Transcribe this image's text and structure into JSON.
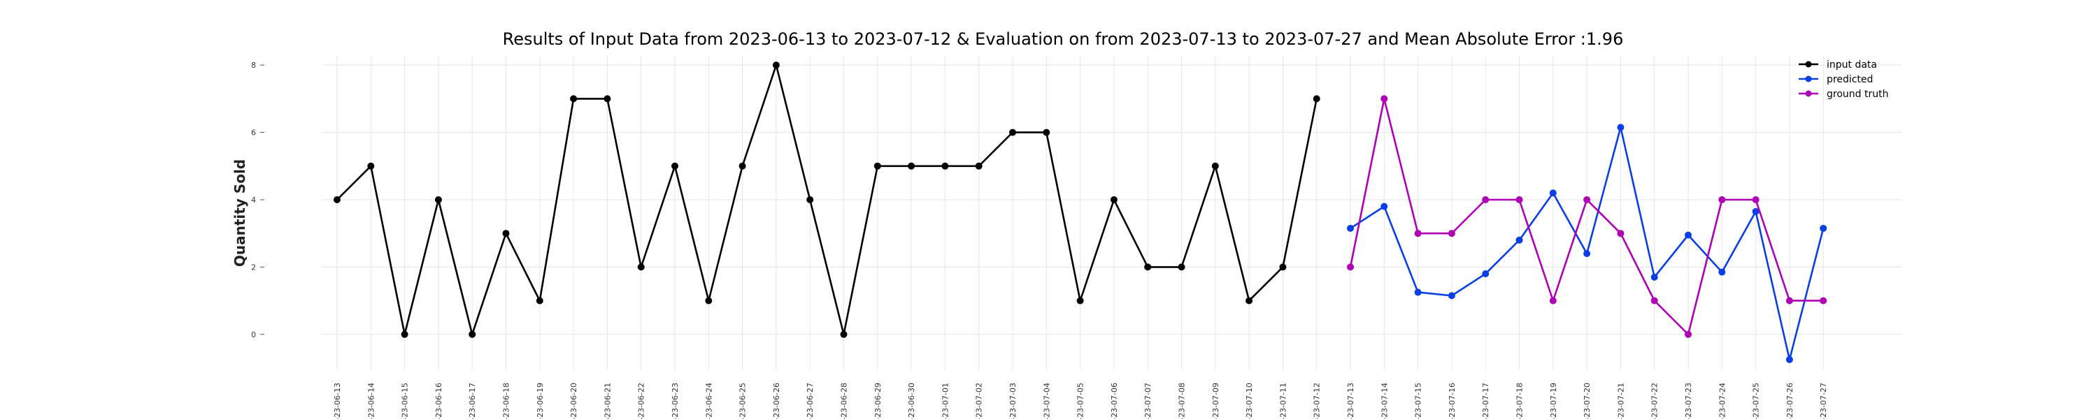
{
  "chart_data": {
    "type": "line",
    "title": "Results of Input Data from 2023-06-13 to 2023-07-12 & Evaluation on from 2023-07-13 to 2023-07-27 and Mean Absolute Error  :1.96",
    "xlabel": "",
    "ylabel": "Quantity Sold",
    "ylim": [
      -1.0,
      8.0
    ],
    "yticks": [
      0,
      2,
      4,
      6,
      8
    ],
    "grid": true,
    "legend_position": "top-right",
    "x_tick_labels": [
      "-23-06-13",
      "-23-06-14",
      "-23-06-15",
      "-23-06-16",
      "-23-06-17",
      "-23-06-18",
      "-23-06-19",
      "-23-06-20",
      "-23-06-21",
      "-23-06-22",
      "-23-06-23",
      "-23-06-24",
      "-23-06-25",
      "-23-06-26",
      "-23-06-27",
      "-23-06-28",
      "-23-06-29",
      "-23-06-30",
      "-23-07-01",
      "-23-07-02",
      "-23-07-03",
      "-23-07-04",
      "-23-07-05",
      "-23-07-06",
      "-23-07-07",
      "-23-07-08",
      "-23-07-09",
      "-23-07-10",
      "-23-07-11",
      "-23-07-12",
      "-23-07-13",
      "-23-07-14",
      "-23-07-15",
      "-23-07-16",
      "-23-07-17",
      "-23-07-18",
      "-23-07-19",
      "-23-07-20",
      "-23-07-21",
      "-23-07-22",
      "-23-07-23",
      "-23-07-24",
      "-23-07-25",
      "-23-07-26",
      "-23-07-27"
    ],
    "series": [
      {
        "name": "input data",
        "color": "#000000",
        "x": [
          "2023-06-13",
          "2023-06-14",
          "2023-06-15",
          "2023-06-16",
          "2023-06-17",
          "2023-06-18",
          "2023-06-19",
          "2023-06-20",
          "2023-06-21",
          "2023-06-22",
          "2023-06-23",
          "2023-06-24",
          "2023-06-25",
          "2023-06-26",
          "2023-06-27",
          "2023-06-28",
          "2023-06-29",
          "2023-06-30",
          "2023-07-01",
          "2023-07-02",
          "2023-07-03",
          "2023-07-04",
          "2023-07-05",
          "2023-07-06",
          "2023-07-07",
          "2023-07-08",
          "2023-07-09",
          "2023-07-10",
          "2023-07-11",
          "2023-07-12"
        ],
        "values": [
          4,
          5,
          0,
          4,
          0,
          3,
          1,
          7,
          7,
          2,
          5,
          1,
          5,
          8,
          4,
          0,
          5,
          5,
          5,
          5,
          6,
          6,
          1,
          4,
          2,
          2,
          5,
          1,
          2,
          7
        ]
      },
      {
        "name": "predicted",
        "color": "#0a3ee6",
        "x": [
          "2023-07-13",
          "2023-07-14",
          "2023-07-15",
          "2023-07-16",
          "2023-07-17",
          "2023-07-18",
          "2023-07-19",
          "2023-07-20",
          "2023-07-21",
          "2023-07-22",
          "2023-07-23",
          "2023-07-24",
          "2023-07-25",
          "2023-07-26",
          "2023-07-27"
        ],
        "values": [
          3.15,
          3.8,
          1.25,
          1.15,
          1.8,
          2.8,
          4.2,
          2.4,
          6.15,
          1.7,
          2.95,
          1.85,
          3.65,
          -0.75,
          3.15
        ]
      },
      {
        "name": "ground truth",
        "color": "#b000b5",
        "x": [
          "2023-07-13",
          "2023-07-14",
          "2023-07-15",
          "2023-07-16",
          "2023-07-17",
          "2023-07-18",
          "2023-07-19",
          "2023-07-20",
          "2023-07-21",
          "2023-07-22",
          "2023-07-23",
          "2023-07-24",
          "2023-07-25",
          "2023-07-26",
          "2023-07-27"
        ],
        "values": [
          2,
          7,
          3,
          3,
          4,
          4,
          1,
          4,
          3,
          1,
          0,
          4,
          4,
          1,
          1
        ]
      }
    ]
  }
}
